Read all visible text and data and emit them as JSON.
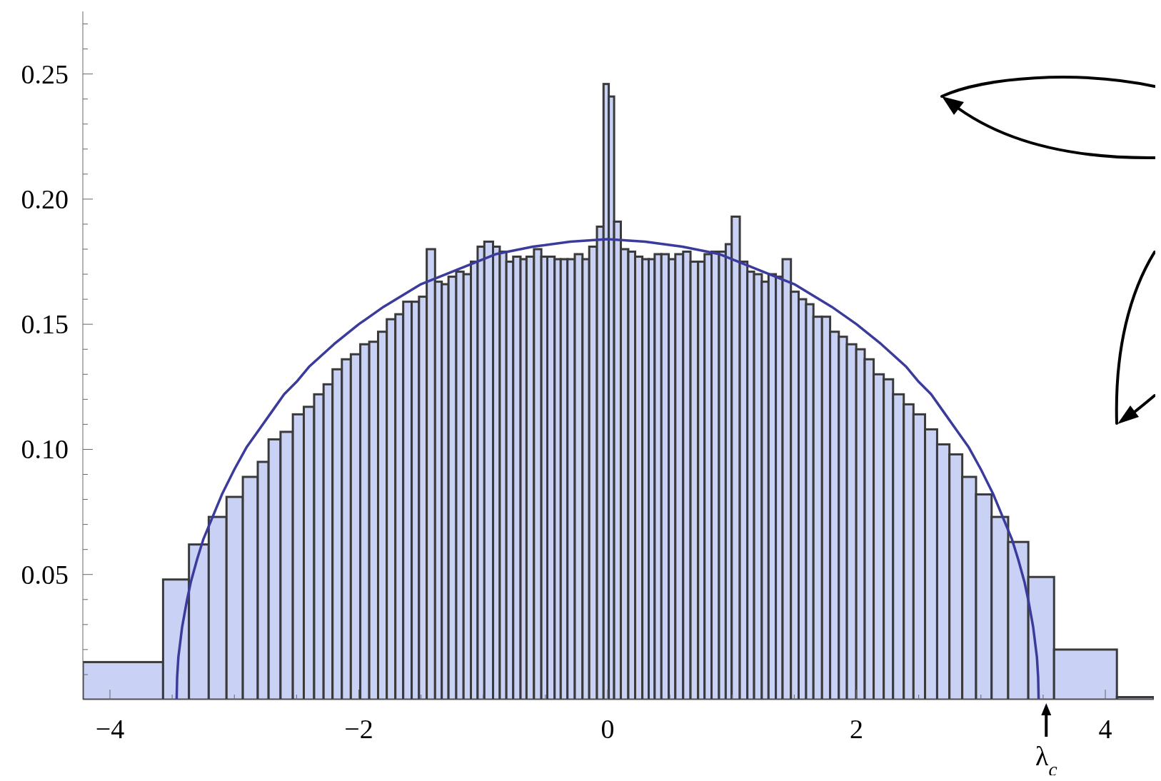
{
  "chart_data": {
    "type": "histogram",
    "bins": [
      -4.218,
      -3.573,
      -3.365,
      -3.206,
      -3.063,
      -2.932,
      -2.812,
      -2.725,
      -2.629,
      -2.53,
      -2.442,
      -2.359,
      -2.283,
      -2.211,
      -2.136,
      -2.064,
      -1.988,
      -1.916,
      -1.845,
      -1.775,
      -1.706,
      -1.643,
      -1.575,
      -1.516,
      -1.454,
      -1.387,
      -1.333,
      -1.279,
      -1.217,
      -1.158,
      -1.099,
      -1.045,
      -0.991,
      -0.921,
      -0.867,
      -0.814,
      -0.759,
      -0.7,
      -0.652,
      -0.592,
      -0.533,
      -0.485,
      -0.426,
      -0.377,
      -0.323,
      -0.264,
      -0.202,
      -0.148,
      -0.086,
      -0.033,
      0.009,
      0.052,
      0.106,
      0.166,
      0.221,
      0.279,
      0.33,
      0.378,
      0.432,
      0.491,
      0.544,
      0.607,
      0.666,
      0.727,
      0.779,
      0.835,
      0.895,
      0.949,
      0.997,
      1.062,
      1.123,
      1.177,
      1.239,
      1.293,
      1.352,
      1.406,
      1.473,
      1.535,
      1.595,
      1.654,
      1.723,
      1.788,
      1.858,
      1.923,
      1.998,
      2.066,
      2.138,
      2.219,
      2.294,
      2.38,
      2.458,
      2.551,
      2.648,
      2.747,
      2.85,
      2.961,
      3.086,
      3.219,
      3.381,
      3.588,
      4.093,
      4.39
    ],
    "series": [
      {
        "color": "#c9d1f5",
        "values": [
          0.015,
          0.048,
          0.062,
          0.073,
          0.081,
          0.089,
          0.095,
          0.104,
          0.107,
          0.114,
          0.117,
          0.122,
          0.126,
          0.132,
          0.136,
          0.138,
          0.142,
          0.143,
          0.147,
          0.152,
          0.154,
          0.159,
          0.159,
          0.161,
          0.18,
          0.167,
          0.166,
          0.169,
          0.171,
          0.17,
          0.175,
          0.181,
          0.183,
          0.181,
          0.179,
          0.175,
          0.177,
          0.176,
          0.177,
          0.18,
          0.177,
          0.177,
          0.176,
          0.176,
          0.176,
          0.178,
          0.176,
          0.181,
          0.189,
          0.246,
          0.241,
          0.191,
          0.18,
          0.179,
          0.177,
          0.176,
          0.176,
          0.178,
          0.178,
          0.176,
          0.178,
          0.179,
          0.175,
          0.175,
          0.178,
          0.179,
          0.179,
          0.182,
          0.193,
          0.175,
          0.171,
          0.17,
          0.167,
          0.17,
          0.169,
          0.176,
          0.163,
          0.16,
          0.158,
          0.153,
          0.153,
          0.147,
          0.145,
          0.142,
          0.14,
          0.136,
          0.13,
          0.128,
          0.122,
          0.118,
          0.114,
          0.108,
          0.102,
          0.098,
          0.089,
          0.082,
          0.073,
          0.063,
          0.049,
          0.02,
          0.001
        ]
      },
      {
        "type": "line",
        "color": "#3b3b9b",
        "x": [
          -3.464,
          -3.46,
          -3.45,
          -3.42,
          -3.38,
          -3.35,
          -3.3,
          -3.25,
          -3.2,
          -3.1,
          -3.0,
          -2.9,
          -2.8,
          -2.7,
          -2.6,
          -2.5,
          -2.4,
          -2.2,
          -2.0,
          -1.8,
          -1.5,
          -1.2,
          -0.9,
          -0.6,
          -0.3,
          0,
          0.3,
          0.6,
          0.9,
          1.2,
          1.5,
          1.8,
          2.0,
          2.2,
          2.4,
          2.5,
          2.6,
          2.7,
          2.8,
          2.9,
          3.0,
          3.1,
          3.2,
          3.25,
          3.3,
          3.35,
          3.38,
          3.42,
          3.45,
          3.46,
          3.464
        ],
        "values": [
          0,
          0.009,
          0.017,
          0.029,
          0.04,
          0.047,
          0.056,
          0.064,
          0.07,
          0.082,
          0.092,
          0.101,
          0.108,
          0.115,
          0.122,
          0.127,
          0.133,
          0.142,
          0.15,
          0.157,
          0.166,
          0.172,
          0.178,
          0.181,
          0.183,
          0.184,
          0.183,
          0.181,
          0.178,
          0.172,
          0.166,
          0.157,
          0.15,
          0.142,
          0.133,
          0.127,
          0.122,
          0.115,
          0.108,
          0.101,
          0.092,
          0.082,
          0.07,
          0.064,
          0.056,
          0.047,
          0.04,
          0.029,
          0.017,
          0.009,
          0
        ]
      }
    ],
    "xlim": [
      -4.218,
      4.39
    ],
    "ylim": [
      0,
      0.275
    ],
    "xticks": [
      {
        "value": -4,
        "label": "−4"
      },
      {
        "value": -3.5,
        "label": null
      },
      {
        "value": -3,
        "label": null
      },
      {
        "value": -2.5,
        "label": null
      },
      {
        "value": -2,
        "label": "−2"
      },
      {
        "value": -1.5,
        "label": null
      },
      {
        "value": -1,
        "label": null
      },
      {
        "value": -0.5,
        "label": null
      },
      0,
      {
        "value": 0.5,
        "label": null
      },
      {
        "value": 1,
        "label": null
      },
      {
        "value": 1.5,
        "label": null
      },
      2,
      {
        "value": 2.5,
        "label": null
      },
      {
        "value": 3,
        "label": null
      },
      {
        "value": 3.5,
        "label": null
      },
      4
    ],
    "yticks": [
      {
        "value": 0.01,
        "label": null
      },
      {
        "value": 0.02,
        "label": null
      },
      {
        "value": 0.03,
        "label": null
      },
      {
        "value": 0.04,
        "label": null
      },
      0.05,
      {
        "value": 0.06,
        "label": null
      },
      {
        "value": 0.07,
        "label": null
      },
      {
        "value": 0.08,
        "label": null
      },
      {
        "value": 0.09,
        "label": null
      },
      {
        "value": 0.1,
        "label": "0.10"
      },
      {
        "value": 0.11,
        "label": null
      },
      {
        "value": 0.12,
        "label": null
      },
      {
        "value": 0.13,
        "label": null
      },
      {
        "value": 0.14,
        "label": null
      },
      0.15,
      {
        "value": 0.16,
        "label": null
      },
      {
        "value": 0.17,
        "label": null
      },
      {
        "value": 0.18,
        "label": null
      },
      {
        "value": 0.19,
        "label": null
      },
      {
        "value": 0.2,
        "label": "0.20"
      },
      {
        "value": 0.21,
        "label": null
      },
      {
        "value": 0.22,
        "label": null
      },
      {
        "value": 0.23,
        "label": null
      },
      {
        "value": 0.24,
        "label": null
      },
      0.25,
      {
        "value": 0.26,
        "label": null
      },
      {
        "value": 0.27,
        "label": null
      }
    ],
    "annotations": [
      {
        "text": "λ$_{c}$",
        "x": 3.525,
        "y": 0
      }
    ]
  }
}
